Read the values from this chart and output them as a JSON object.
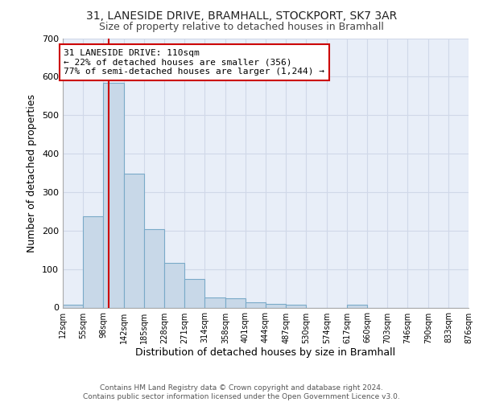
{
  "title1": "31, LANESIDE DRIVE, BRAMHALL, STOCKPORT, SK7 3AR",
  "title2": "Size of property relative to detached houses in Bramhall",
  "xlabel": "Distribution of detached houses by size in Bramhall",
  "ylabel": "Number of detached properties",
  "bar_edges": [
    12,
    55,
    98,
    142,
    185,
    228,
    271,
    314,
    358,
    401,
    444,
    487,
    530,
    574,
    617,
    660,
    703,
    746,
    790,
    833,
    876
  ],
  "bar_heights": [
    8,
    238,
    585,
    348,
    203,
    117,
    75,
    27,
    25,
    13,
    9,
    8,
    0,
    0,
    8,
    0,
    0,
    0,
    0,
    0
  ],
  "bar_color": "#c8d8e8",
  "bar_edgecolor": "#7aaac8",
  "property_sqm": 110,
  "annotation_text": "31 LANESIDE DRIVE: 110sqm\n← 22% of detached houses are smaller (356)\n77% of semi-detached houses are larger (1,244) →",
  "annotation_box_color": "#ffffff",
  "annotation_box_edgecolor": "#cc0000",
  "vline_color": "#cc0000",
  "ylim": [
    0,
    700
  ],
  "yticks": [
    0,
    100,
    200,
    300,
    400,
    500,
    600,
    700
  ],
  "bg_color": "#e8eef8",
  "grid_color": "#d0d8e8",
  "fig_bg_color": "#ffffff",
  "footnote": "Contains HM Land Registry data © Crown copyright and database right 2024.\nContains public sector information licensed under the Open Government Licence v3.0.",
  "title1_fontsize": 10,
  "title2_fontsize": 9,
  "xlabel_fontsize": 9,
  "ylabel_fontsize": 9,
  "annotation_fontsize": 8,
  "footnote_fontsize": 6.5,
  "tick_fontsize": 7
}
